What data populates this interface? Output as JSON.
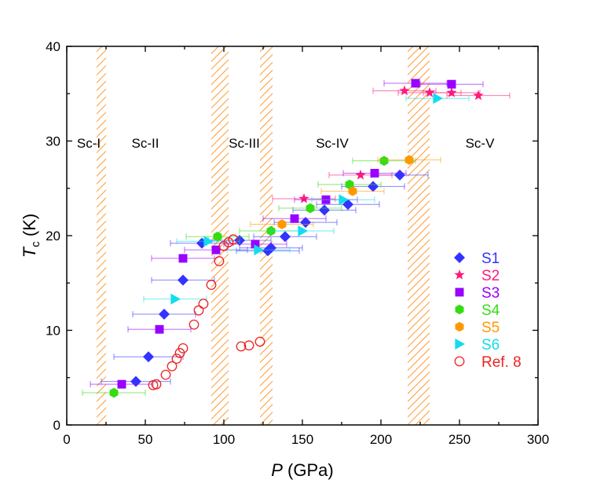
{
  "chart_data": {
    "type": "scatter",
    "title": "",
    "xlabel": "P (GPa)",
    "xlabel_italic_part": "P",
    "xlabel_rest": " (GPa)",
    "ylabel": "Tc (K)",
    "ylabel_main": "T",
    "ylabel_sub": "c",
    "ylabel_rest": " (K)",
    "xlim": [
      0,
      300
    ],
    "ylim": [
      0,
      40
    ],
    "xticks": [
      0,
      50,
      100,
      150,
      200,
      250,
      300
    ],
    "yticks": [
      0,
      10,
      20,
      30,
      40
    ],
    "grid": false,
    "legend_position": "right",
    "phase_boundaries": [
      {
        "from": 19,
        "to": 25
      },
      {
        "from": 92,
        "to": 103
      },
      {
        "from": 123,
        "to": 131
      },
      {
        "from": 217,
        "to": 231
      }
    ],
    "region_labels": [
      {
        "text": "Sc-I",
        "x": 14,
        "y": 29.3
      },
      {
        "text": "Sc-II",
        "x": 50,
        "y": 29.3
      },
      {
        "text": "Sc-III",
        "x": 113,
        "y": 29.3
      },
      {
        "text": "Sc-IV",
        "x": 169,
        "y": 29.3
      },
      {
        "text": "Sc-V",
        "x": 263,
        "y": 29.3
      }
    ],
    "series": [
      {
        "name": "S1",
        "marker": "diamond",
        "color": "#3333ff",
        "points": [
          {
            "x": 44,
            "y": 4.6,
            "xerr": 22
          },
          {
            "x": 52,
            "y": 7.2,
            "xerr": 22
          },
          {
            "x": 62,
            "y": 11.7,
            "xerr": 20
          },
          {
            "x": 74,
            "y": 15.3,
            "xerr": 20
          },
          {
            "x": 86,
            "y": 19.2,
            "xerr": 20
          },
          {
            "x": 110,
            "y": 19.5,
            "xerr": 20
          },
          {
            "x": 128,
            "y": 18.4,
            "xerr": 20
          },
          {
            "x": 130,
            "y": 18.7,
            "xerr": 20
          },
          {
            "x": 139,
            "y": 19.9,
            "xerr": 20
          },
          {
            "x": 152,
            "y": 21.4,
            "xerr": 20
          },
          {
            "x": 164,
            "y": 22.7,
            "xerr": 20
          },
          {
            "x": 179,
            "y": 23.3,
            "xerr": 20
          },
          {
            "x": 195,
            "y": 25.2,
            "xerr": 20
          },
          {
            "x": 212,
            "y": 26.4,
            "xerr": 18
          }
        ]
      },
      {
        "name": "S2",
        "marker": "star",
        "color": "#ff1a7a",
        "points": [
          {
            "x": 151,
            "y": 23.9,
            "xerr": 20
          },
          {
            "x": 187,
            "y": 26.4,
            "xerr": 20
          },
          {
            "x": 215,
            "y": 35.3,
            "xerr": 20
          },
          {
            "x": 231,
            "y": 35.1,
            "xerr": 20
          },
          {
            "x": 245,
            "y": 35.1,
            "xerr": 18
          },
          {
            "x": 262,
            "y": 34.8,
            "xerr": 20
          }
        ]
      },
      {
        "name": "S3",
        "marker": "square",
        "color": "#9900ff",
        "points": [
          {
            "x": 35,
            "y": 4.3,
            "xerr": 20
          },
          {
            "x": 59,
            "y": 10.1,
            "xerr": 20
          },
          {
            "x": 74,
            "y": 17.6,
            "xerr": 20
          },
          {
            "x": 95,
            "y": 18.5,
            "xerr": 20
          },
          {
            "x": 120,
            "y": 19.1,
            "xerr": 20
          },
          {
            "x": 145,
            "y": 21.8,
            "xerr": 20
          },
          {
            "x": 165,
            "y": 23.8,
            "xerr": 20
          },
          {
            "x": 196,
            "y": 26.6,
            "xerr": 20
          },
          {
            "x": 222,
            "y": 36.1,
            "xerr": 20
          },
          {
            "x": 245,
            "y": 36.0,
            "xerr": 20
          }
        ]
      },
      {
        "name": "S4",
        "marker": "hexagon",
        "color": "#33dd11",
        "points": [
          {
            "x": 30,
            "y": 3.4,
            "xerr": 20
          },
          {
            "x": 96,
            "y": 19.9,
            "xerr": 20
          },
          {
            "x": 130,
            "y": 20.5,
            "xerr": 20
          },
          {
            "x": 155,
            "y": 22.9,
            "xerr": 20
          },
          {
            "x": 180,
            "y": 25.4,
            "xerr": 20
          },
          {
            "x": 202,
            "y": 27.9,
            "xerr": 20
          }
        ]
      },
      {
        "name": "S5",
        "marker": "hexagon",
        "color": "#ff9900",
        "points": [
          {
            "x": 137,
            "y": 21.2,
            "xerr": 20
          },
          {
            "x": 182,
            "y": 24.7,
            "xerr": 20
          },
          {
            "x": 218,
            "y": 28.0,
            "xerr": 20
          }
        ]
      },
      {
        "name": "S6",
        "marker": "triangle-right",
        "color": "#11ddee",
        "points": [
          {
            "x": 69,
            "y": 13.3,
            "xerr": 20
          },
          {
            "x": 90,
            "y": 19.4,
            "xerr": 20
          },
          {
            "x": 122,
            "y": 18.5,
            "xerr": 20
          },
          {
            "x": 150,
            "y": 20.5,
            "xerr": 20
          },
          {
            "x": 176,
            "y": 23.8,
            "xerr": 20
          },
          {
            "x": 236,
            "y": 34.5,
            "xerr": 20
          }
        ]
      },
      {
        "name": "Ref. 8",
        "marker": "open-circle",
        "color": "#ee2222",
        "points": [
          {
            "x": 55,
            "y": 4.2
          },
          {
            "x": 57,
            "y": 4.3
          },
          {
            "x": 63,
            "y": 5.3
          },
          {
            "x": 67,
            "y": 6.2
          },
          {
            "x": 70,
            "y": 7.0
          },
          {
            "x": 72,
            "y": 7.6
          },
          {
            "x": 74,
            "y": 8.1
          },
          {
            "x": 81,
            "y": 10.6
          },
          {
            "x": 84,
            "y": 12.1
          },
          {
            "x": 87,
            "y": 12.8
          },
          {
            "x": 92,
            "y": 14.8
          },
          {
            "x": 97,
            "y": 17.3
          },
          {
            "x": 100,
            "y": 18.9
          },
          {
            "x": 103,
            "y": 19.3
          },
          {
            "x": 106,
            "y": 19.6
          },
          {
            "x": 111,
            "y": 8.3
          },
          {
            "x": 116,
            "y": 8.4
          },
          {
            "x": 123,
            "y": 8.8
          }
        ]
      }
    ]
  }
}
